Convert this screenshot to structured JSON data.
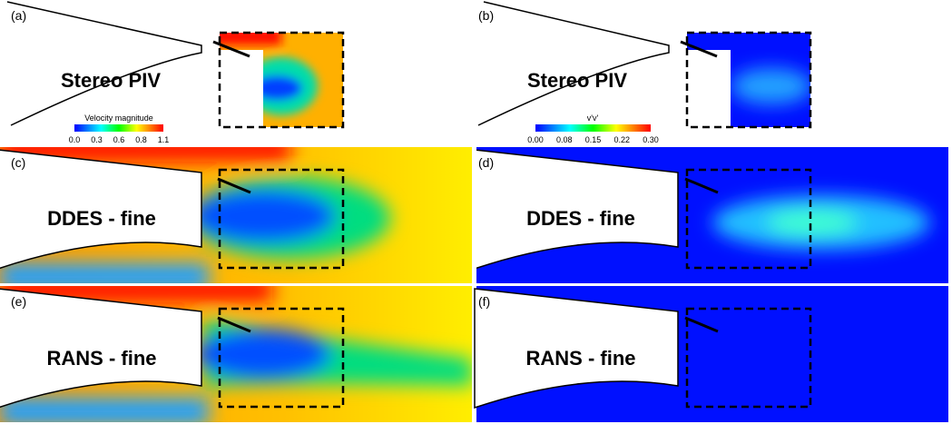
{
  "panels": [
    {
      "label": "(a)",
      "title": "Stereo PIV"
    },
    {
      "label": "(b)",
      "title": "Stereo PIV"
    },
    {
      "label": "(c)",
      "title": "DDES - fine"
    },
    {
      "label": "(d)",
      "title": "DDES -  fine"
    },
    {
      "label": "(e)",
      "title": "RANS - fine"
    },
    {
      "label": "(f)",
      "title": "RANS - fine"
    }
  ],
  "colorbars": [
    {
      "title": "Velocity magnitude",
      "ticks": [
        "0.0",
        "0.3",
        "0.6",
        "0.8",
        "1.1"
      ]
    },
    {
      "title": "v'v'",
      "ticks": [
        "0.00",
        "0.08",
        "0.15",
        "0.22",
        "0.30"
      ]
    }
  ]
}
